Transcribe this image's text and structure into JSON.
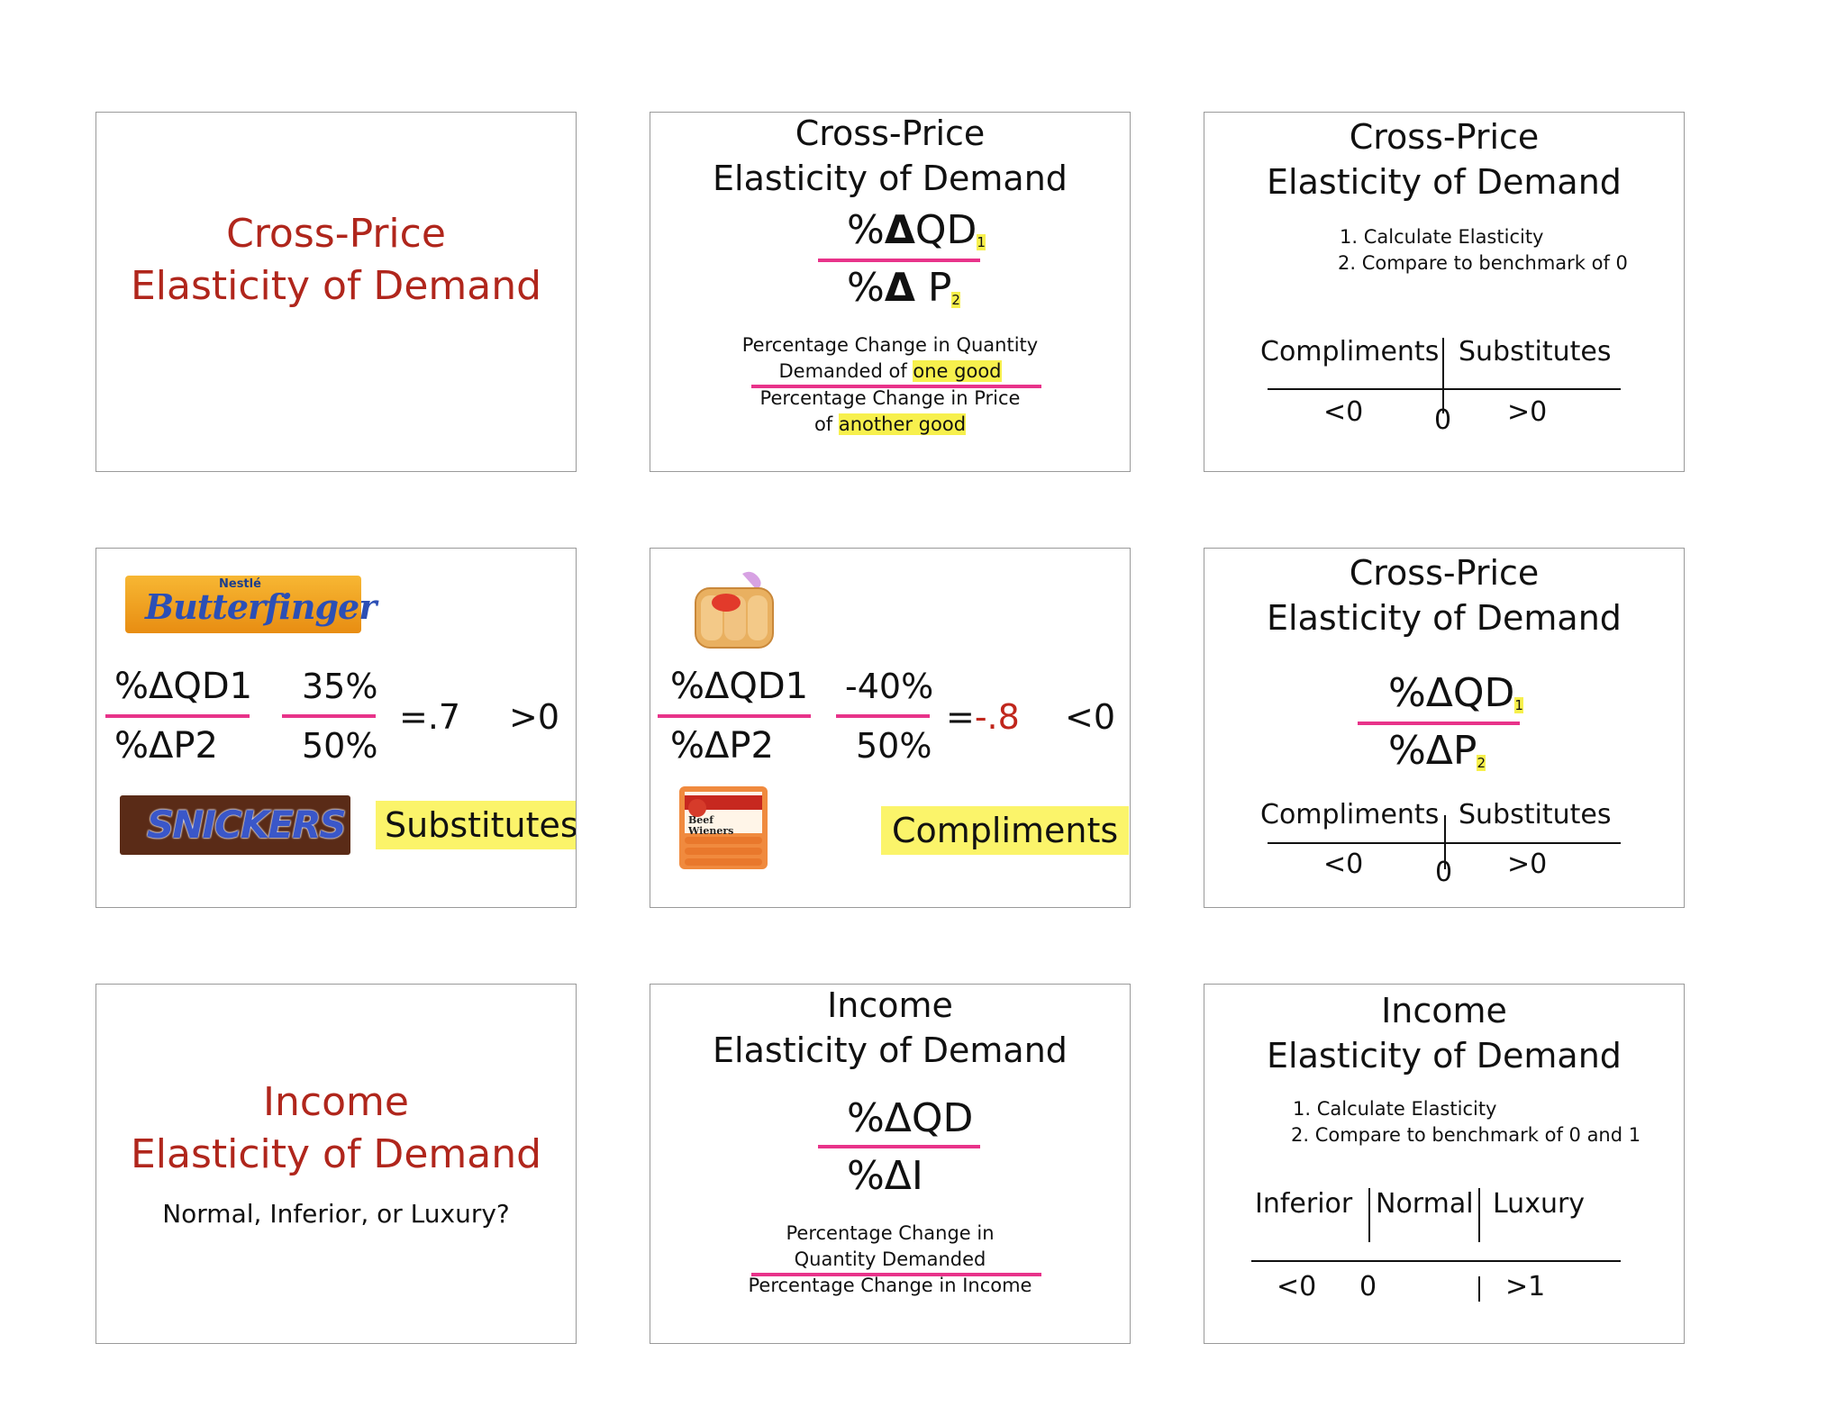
{
  "slide1": {
    "line1": "Cross-Price",
    "line2": "Elasticity of Demand"
  },
  "slide2": {
    "line1": "Cross-Price",
    "line2": "Elasticity of Demand",
    "num_prefix": "%",
    "delta": "Δ",
    "num_var": "QD",
    "num_sub": "1",
    "den_prefix": "%",
    "den_var": "P",
    "den_sub": "2",
    "desc1": "Percentage Change in Quantity",
    "desc2a": "Demanded of ",
    "desc2b": "one good",
    "desc3": "Percentage Change in Price",
    "desc4a": "of ",
    "desc4b": "another good"
  },
  "slide3": {
    "line1": "Cross-Price",
    "line2": "Elasticity of Demand",
    "step1": "1. Calculate Elasticity",
    "step2": "2. Compare to benchmark of 0",
    "left_label": "Compliments",
    "right_label": "Substitutes",
    "less": "<0",
    "zero": "0",
    "greater": ">0"
  },
  "slide4": {
    "brand_top_small": "Nestlé",
    "brand_top": "Butterfinger",
    "num": "%ΔQD1",
    "den": "%ΔP2",
    "num_val": "35%",
    "den_val": "50%",
    "result": "=.7",
    "compare": ">0",
    "brand_bottom": "SNICKERS",
    "answer": "Substitutes"
  },
  "slide5": {
    "num": "%ΔQD1",
    "den": "%ΔP2",
    "num_val": "-40%",
    "den_val": "50%",
    "result_eq": "=",
    "result_val": "-.8",
    "compare": "<0",
    "pkg_label": "Beef Wieners",
    "answer": "Compliments"
  },
  "slide6": {
    "line1": "Cross-Price",
    "line2": "Elasticity of Demand",
    "num": "%ΔQD",
    "num_sub": "1",
    "den": "%ΔP",
    "den_sub": "2",
    "left_label": "Compliments",
    "right_label": "Substitutes",
    "less": "<0",
    "zero": "0",
    "greater": ">0"
  },
  "slide7": {
    "line1": "Income",
    "line2": "Elasticity of Demand",
    "question": "Normal, Inferior, or Luxury?"
  },
  "slide8": {
    "line1": "Income",
    "line2": "Elasticity of Demand",
    "num": "%ΔQD",
    "den": "%ΔI",
    "desc1": "Percentage Change in",
    "desc2": "Quantity Demanded",
    "desc3": "Percentage Change in Income"
  },
  "slide9": {
    "line1": "Income",
    "line2": "Elasticity of Demand",
    "step1": "1. Calculate Elasticity",
    "step2": "2. Compare to benchmark of 0 and 1",
    "col1": "Inferior",
    "col2": "Normal",
    "col3": "Luxury",
    "v1": "<0",
    "v2": "0",
    "v3": "1",
    "v4": ">1"
  }
}
